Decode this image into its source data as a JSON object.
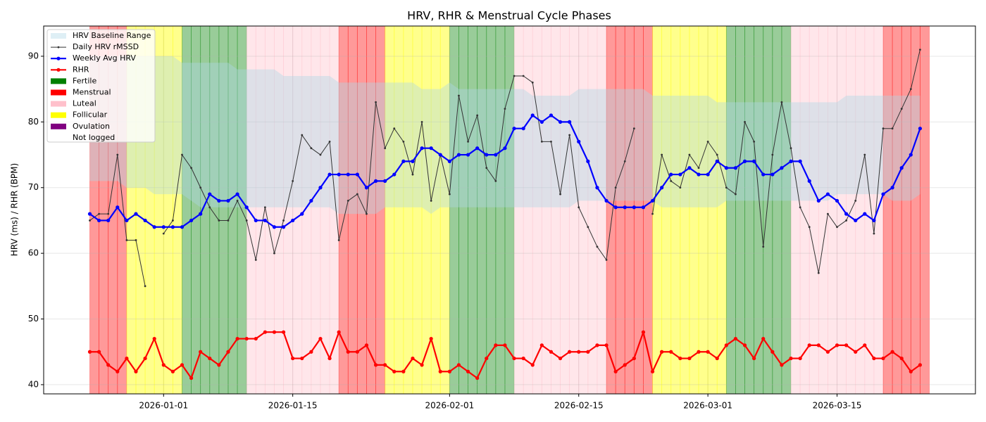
{
  "chart_data": {
    "type": "line",
    "title": "HRV, RHR & Menstrual Cycle Phases",
    "y_label": "HRV (ms) / RHR (BPM)",
    "x": [
      "2025-12-24",
      "2025-12-25",
      "2025-12-26",
      "2025-12-27",
      "2025-12-28",
      "2025-12-29",
      "2025-12-30",
      "2025-12-31",
      "2026-01-01",
      "2026-01-02",
      "2026-01-03",
      "2026-01-04",
      "2026-01-05",
      "2026-01-06",
      "2026-01-07",
      "2026-01-08",
      "2026-01-09",
      "2026-01-10",
      "2026-01-11",
      "2026-01-12",
      "2026-01-13",
      "2026-01-14",
      "2026-01-15",
      "2026-01-16",
      "2026-01-17",
      "2026-01-18",
      "2026-01-19",
      "2026-01-20",
      "2026-01-21",
      "2026-01-22",
      "2026-01-23",
      "2026-01-24",
      "2026-01-25",
      "2026-01-26",
      "2026-01-27",
      "2026-01-28",
      "2026-01-29",
      "2026-01-30",
      "2026-01-31",
      "2026-02-01",
      "2026-02-02",
      "2026-02-03",
      "2026-02-04",
      "2026-02-05",
      "2026-02-06",
      "2026-02-07",
      "2026-02-08",
      "2026-02-09",
      "2026-02-10",
      "2026-02-11",
      "2026-02-12",
      "2026-02-13",
      "2026-02-14",
      "2026-02-15",
      "2026-02-16",
      "2026-02-17",
      "2026-02-18",
      "2026-02-19",
      "2026-02-20",
      "2026-02-21",
      "2026-02-22",
      "2026-02-23",
      "2026-02-24",
      "2026-02-25",
      "2026-02-26",
      "2026-02-27",
      "2026-02-28",
      "2026-03-01",
      "2026-03-02",
      "2026-03-03",
      "2026-03-04",
      "2026-03-05",
      "2026-03-06",
      "2026-03-07",
      "2026-03-08",
      "2026-03-09",
      "2026-03-10",
      "2026-03-11",
      "2026-03-12",
      "2026-03-13",
      "2026-03-14",
      "2026-03-15",
      "2026-03-16",
      "2026-03-17",
      "2026-03-18",
      "2026-03-19",
      "2026-03-20",
      "2026-03-21",
      "2026-03-22",
      "2026-03-23",
      "2026-03-24"
    ],
    "phases": [
      "Menstrual",
      "Menstrual",
      "Menstrual",
      "Menstrual",
      "Follicular",
      "Follicular",
      "Follicular",
      "Follicular",
      "Follicular",
      "Follicular",
      "Fertile",
      "Fertile",
      "Fertile",
      "Fertile",
      "Fertile",
      "Fertile",
      "Fertile",
      "Luteal",
      "Luteal",
      "Luteal",
      "Luteal",
      "Luteal",
      "Luteal",
      "Luteal",
      "Luteal",
      "Luteal",
      "Luteal",
      "Menstrual",
      "Menstrual",
      "Menstrual",
      "Menstrual",
      "Menstrual",
      "Follicular",
      "Follicular",
      "Follicular",
      "Follicular",
      "Follicular",
      "Follicular",
      "Follicular",
      "Fertile",
      "Fertile",
      "Fertile",
      "Fertile",
      "Fertile",
      "Fertile",
      "Fertile",
      "Luteal",
      "Luteal",
      "Luteal",
      "Luteal",
      "Luteal",
      "Luteal",
      "Luteal",
      "Luteal",
      "Luteal",
      "Luteal",
      "Menstrual",
      "Menstrual",
      "Menstrual",
      "Menstrual",
      "Menstrual",
      "Follicular",
      "Follicular",
      "Follicular",
      "Follicular",
      "Follicular",
      "Follicular",
      "Follicular",
      "Follicular",
      "Fertile",
      "Fertile",
      "Fertile",
      "Fertile",
      "Fertile",
      "Fertile",
      "Fertile",
      "Luteal",
      "Luteal",
      "Luteal",
      "Luteal",
      "Luteal",
      "Luteal",
      "Luteal",
      "Luteal",
      "Luteal",
      "Luteal",
      "Menstrual",
      "Menstrual",
      "Menstrual",
      "Menstrual",
      "Menstrual"
    ],
    "phase_legend": [
      {
        "name": "Fertile",
        "color": "#008000"
      },
      {
        "name": "Menstrual",
        "color": "#ff0000"
      },
      {
        "name": "Luteal",
        "color": "#ffc0cb"
      },
      {
        "name": "Follicular",
        "color": "#ffff00"
      },
      {
        "name": "Ovulation",
        "color": "#800080"
      },
      {
        "name": "Not logged",
        "color": "#ffffff"
      }
    ],
    "band": {
      "name": "HRV Baseline Range",
      "color": "#add8e6",
      "low": [
        71,
        71,
        71,
        71,
        70,
        70,
        70,
        69,
        69,
        69,
        69,
        68,
        67,
        67,
        67,
        67,
        67,
        67,
        67,
        67,
        67,
        67,
        67,
        67,
        67,
        67,
        67,
        66,
        66,
        66,
        66,
        66,
        67,
        67,
        67,
        67,
        67,
        66,
        67,
        67,
        67,
        67,
        67,
        67,
        67,
        67,
        67,
        67,
        67,
        67,
        67,
        67,
        67,
        68,
        68,
        68,
        68,
        68,
        68,
        68,
        68,
        68,
        67,
        67,
        67,
        67,
        67,
        67,
        67,
        68,
        68,
        68,
        68,
        68,
        68,
        68,
        68,
        68,
        68,
        68,
        68,
        69,
        69,
        69,
        69,
        69,
        69,
        68,
        68,
        68,
        69
      ],
      "high": [
        90,
        90,
        90,
        90,
        90,
        90,
        90,
        90,
        90,
        90,
        89,
        89,
        89,
        89,
        89,
        89,
        88,
        88,
        88,
        88,
        88,
        87,
        87,
        87,
        87,
        87,
        87,
        86,
        86,
        86,
        86,
        86,
        86,
        86,
        86,
        86,
        85,
        85,
        85,
        86,
        85,
        85,
        85,
        85,
        85,
        85,
        85,
        85,
        84,
        84,
        84,
        84,
        84,
        85,
        85,
        85,
        85,
        85,
        85,
        85,
        85,
        84,
        84,
        84,
        84,
        84,
        84,
        84,
        83,
        83,
        83,
        83,
        83,
        83,
        83,
        83,
        83,
        83,
        83,
        83,
        83,
        83,
        84,
        84,
        84,
        84,
        84,
        84,
        84,
        84,
        84
      ]
    },
    "series": [
      {
        "name": "Daily HRV rMSSD",
        "color": "#333333",
        "values": [
          65,
          66,
          66,
          75,
          62,
          62,
          55,
          null,
          63,
          65,
          75,
          73,
          70,
          67,
          65,
          65,
          68,
          65,
          59,
          67,
          60,
          65,
          71,
          78,
          76,
          75,
          77,
          62,
          68,
          69,
          66,
          83,
          76,
          79,
          77,
          72,
          80,
          68,
          75,
          69,
          84,
          77,
          81,
          73,
          71,
          82,
          87,
          87,
          86,
          77,
          77,
          69,
          78,
          67,
          64,
          61,
          59,
          70,
          74,
          79,
          null,
          66,
          75,
          71,
          70,
          75,
          73,
          77,
          75,
          70,
          69,
          80,
          77,
          61,
          75,
          83,
          76,
          67,
          64,
          57,
          66,
          64,
          65,
          68,
          75,
          63,
          79,
          79,
          82,
          85,
          91
        ]
      },
      {
        "name": "Weekly Avg HRV",
        "color": "#0000ff",
        "values": [
          66,
          65,
          65,
          67,
          65,
          66,
          65,
          64,
          64,
          64,
          64,
          65,
          66,
          69,
          68,
          68,
          69,
          67,
          65,
          65,
          64,
          64,
          65,
          66,
          68,
          70,
          72,
          72,
          72,
          72,
          70,
          71,
          71,
          72,
          74,
          74,
          76,
          76,
          75,
          74,
          75,
          75,
          76,
          75,
          75,
          76,
          79,
          79,
          81,
          80,
          81,
          80,
          80,
          77,
          74,
          70,
          68,
          67,
          67,
          67,
          67,
          68,
          70,
          72,
          72,
          73,
          72,
          72,
          74,
          73,
          73,
          74,
          74,
          72,
          72,
          73,
          74,
          74,
          71,
          68,
          69,
          68,
          66,
          65,
          66,
          65,
          69,
          70,
          73,
          75,
          79
        ]
      },
      {
        "name": "RHR",
        "color": "#ff0000",
        "values": [
          45,
          45,
          43,
          42,
          44,
          42,
          44,
          47,
          43,
          42,
          43,
          41,
          45,
          44,
          43,
          45,
          47,
          47,
          47,
          48,
          48,
          48,
          44,
          44,
          45,
          47,
          44,
          48,
          45,
          45,
          46,
          43,
          43,
          42,
          42,
          44,
          43,
          47,
          42,
          42,
          43,
          42,
          41,
          44,
          46,
          46,
          44,
          44,
          43,
          46,
          45,
          44,
          45,
          45,
          45,
          46,
          46,
          42,
          43,
          44,
          48,
          42,
          45,
          45,
          44,
          44,
          45,
          45,
          44,
          46,
          47,
          46,
          44,
          47,
          45,
          43,
          44,
          44,
          46,
          46,
          45,
          46,
          46,
          45,
          46,
          44,
          44,
          45,
          44,
          42,
          43
        ]
      }
    ],
    "xlim": [
      "2025-12-19",
      "2026-03-30"
    ],
    "xticks": [
      "2026-01-01",
      "2026-01-15",
      "2026-02-01",
      "2026-02-15",
      "2026-03-01",
      "2026-03-15"
    ],
    "ylim": [
      38.6,
      94.6
    ],
    "yticks": [
      40,
      50,
      60,
      70,
      80,
      90
    ],
    "grid": true,
    "legend": "upper left"
  }
}
